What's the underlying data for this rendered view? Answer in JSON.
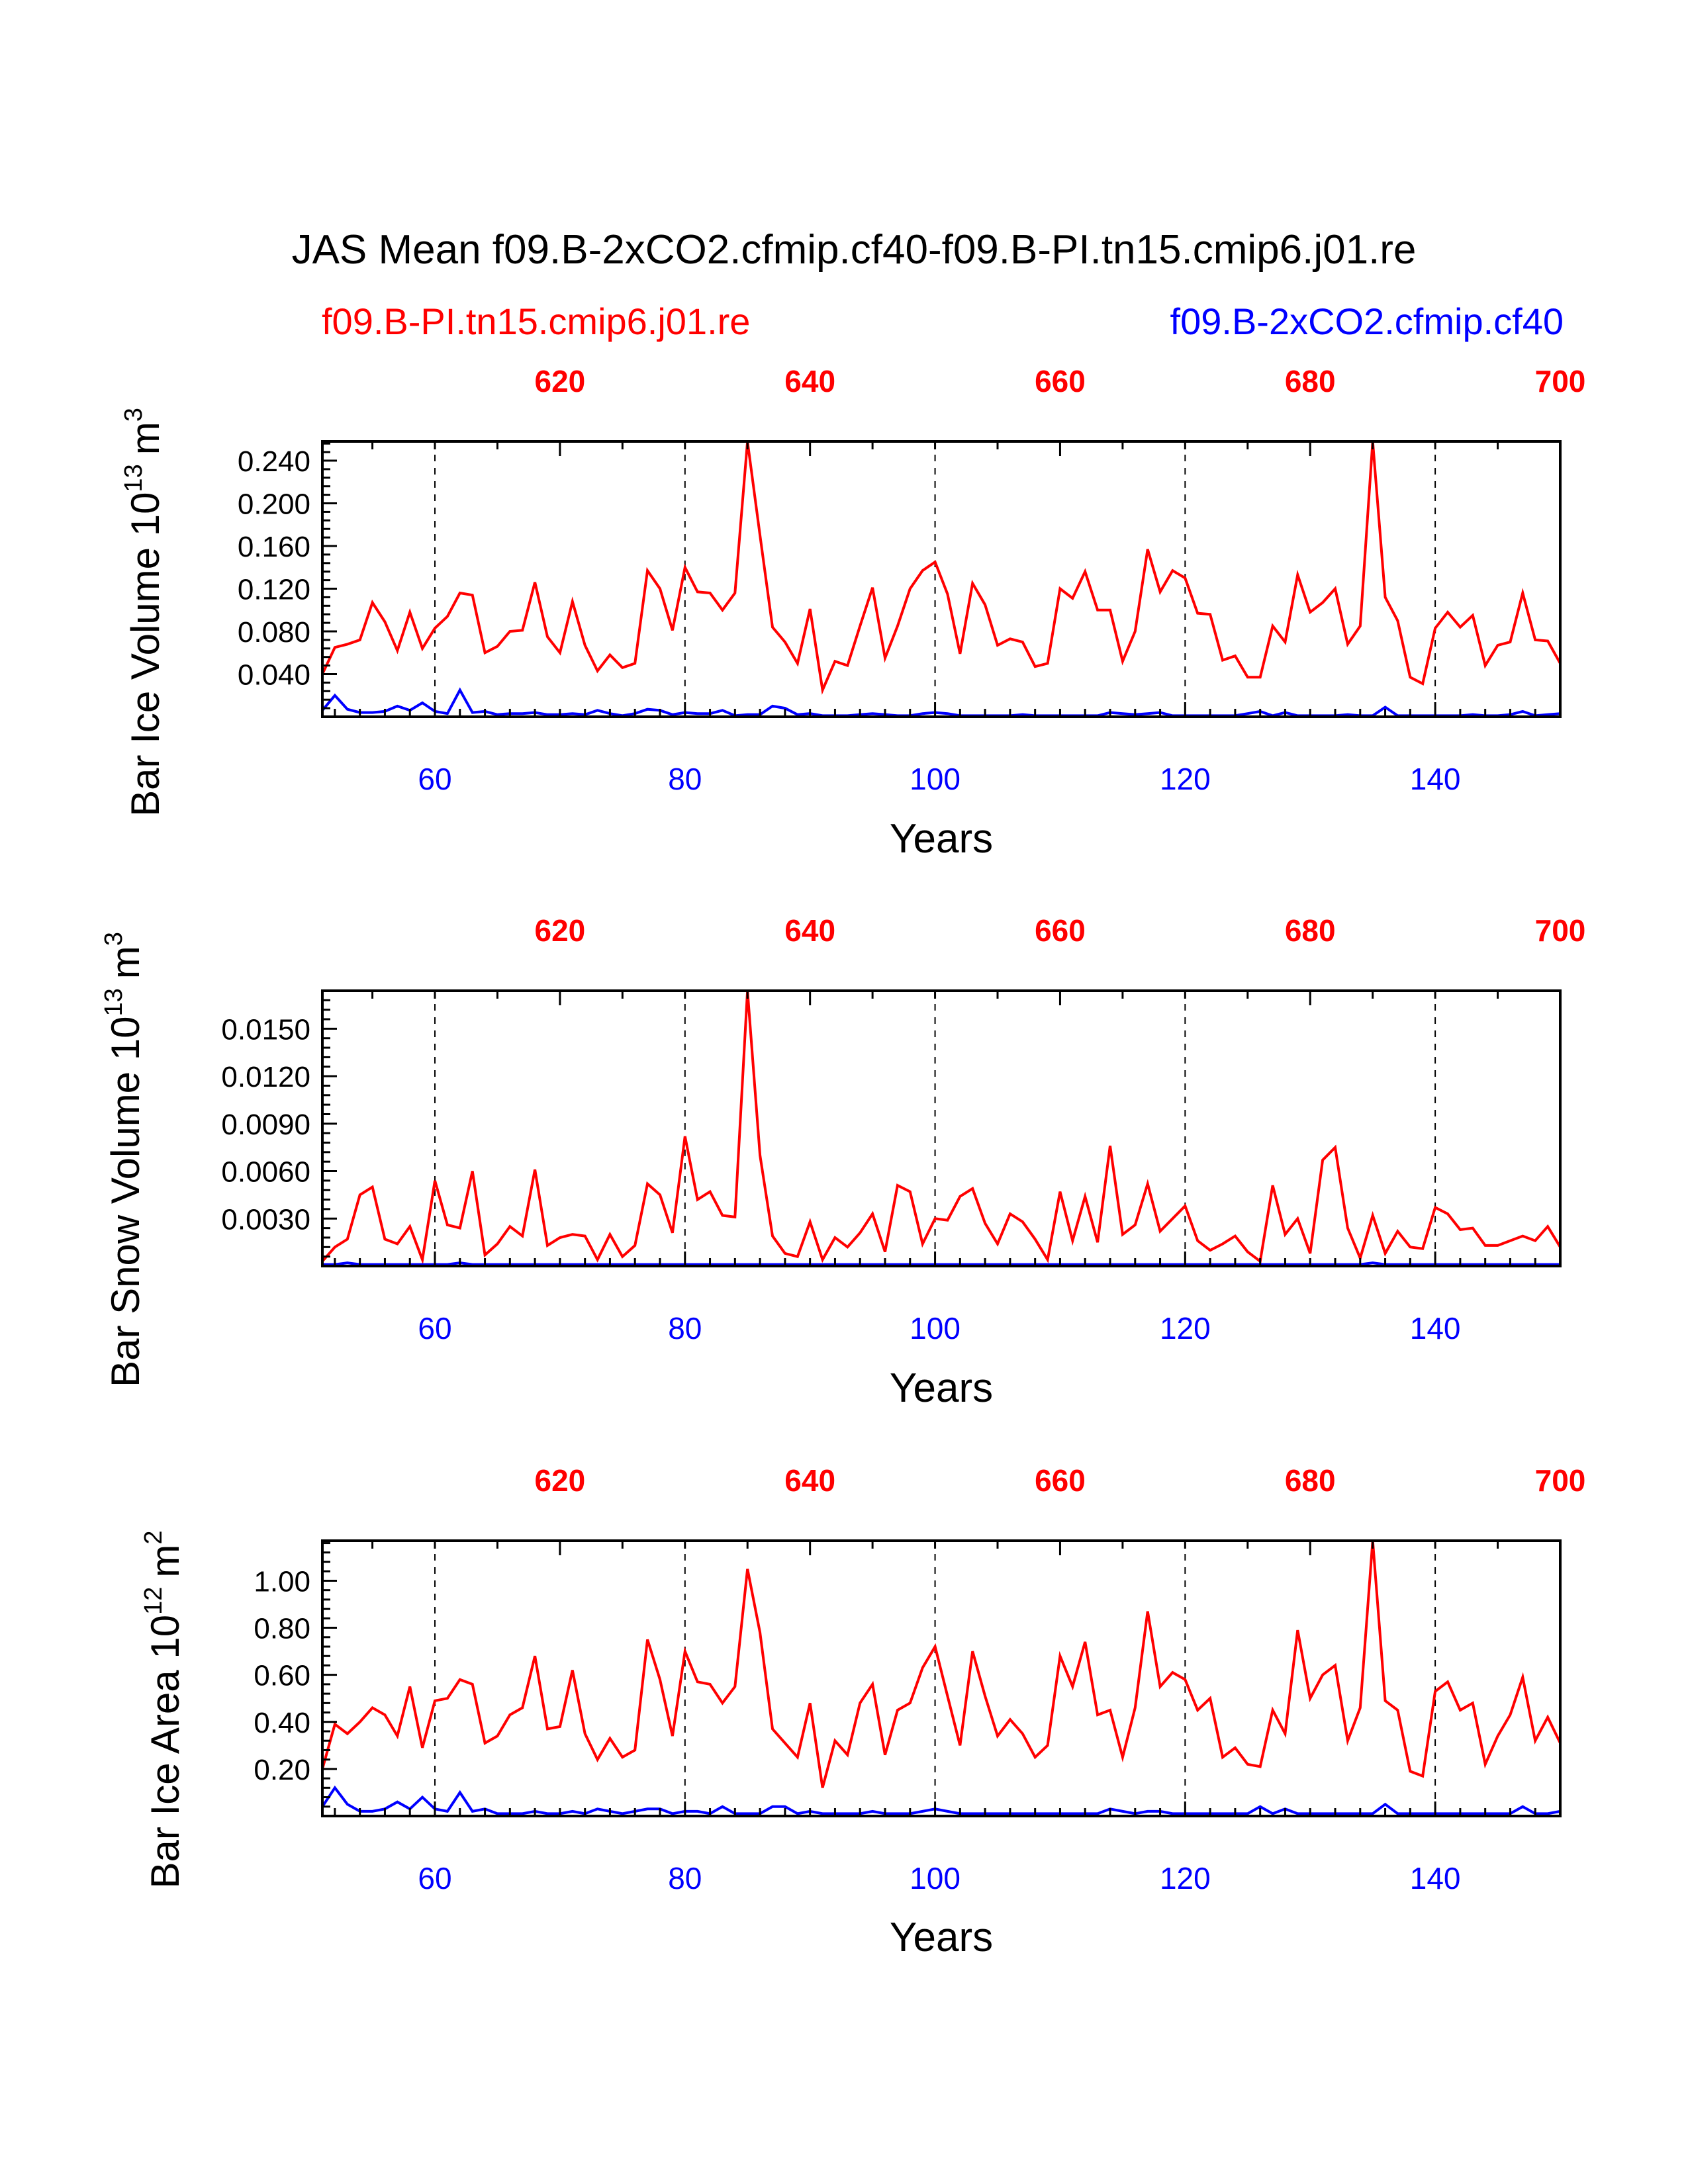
{
  "title": "JAS Mean f09.B-2xCO2.cfmip.cf40-f09.B-PI.tn15.cmip6.j01.re",
  "legend": {
    "left_label": "f09.B-PI.tn15.cmip6.j01.re",
    "right_label": "f09.B-2xCO2.cfmip.cf40",
    "left_color": "#ff0000",
    "right_color": "#0000ff"
  },
  "colors": {
    "control": "#ff0000",
    "experiment": "#0000ff",
    "axis": "#000000"
  },
  "chart_data": [
    {
      "type": "line",
      "ylabel_main": "Bar Ice Volume 10",
      "ylabel_exp": "13",
      "ylabel_unit": "m",
      "ylabel_unit_exp": "3",
      "xlabel": "Years",
      "xlim": [
        51,
        150
      ],
      "top_xlim": [
        601,
        700
      ],
      "ylim": [
        0.0,
        0.258
      ],
      "yticks": [
        0.04,
        0.08,
        0.12,
        0.16,
        0.2,
        0.24
      ],
      "ytick_labels": [
        "0.040",
        "0.080",
        "0.120",
        "0.160",
        "0.200",
        "0.240"
      ],
      "bottom_ticks": [
        60,
        80,
        100,
        120,
        140
      ],
      "bottom_tick_labels": [
        "60",
        "80",
        "100",
        "120",
        "140"
      ],
      "top_ticks": [
        620,
        640,
        660,
        680,
        700
      ],
      "top_tick_labels": [
        "620",
        "640",
        "660",
        "680",
        "700"
      ],
      "gridlines_x": [
        60,
        80,
        100,
        120,
        140
      ],
      "series": [
        {
          "name": "f09.B-PI.tn15.cmip6.j01.re",
          "color": "#ff0000",
          "x_start": 51,
          "values": [
            0.04,
            0.065,
            0.068,
            0.072,
            0.107,
            0.089,
            0.062,
            0.098,
            0.064,
            0.083,
            0.094,
            0.116,
            0.114,
            0.06,
            0.066,
            0.08,
            0.081,
            0.126,
            0.075,
            0.06,
            0.108,
            0.067,
            0.043,
            0.058,
            0.046,
            0.05,
            0.137,
            0.12,
            0.081,
            0.14,
            0.117,
            0.116,
            0.1,
            0.116,
            0.258,
            0.17,
            0.084,
            0.07,
            0.05,
            0.101,
            0.025,
            0.052,
            0.048,
            0.085,
            0.121,
            0.055,
            0.085,
            0.12,
            0.137,
            0.145,
            0.115,
            0.059,
            0.125,
            0.105,
            0.067,
            0.073,
            0.07,
            0.047,
            0.05,
            0.12,
            0.111,
            0.136,
            0.1,
            0.1,
            0.052,
            0.08,
            0.157,
            0.117,
            0.137,
            0.13,
            0.097,
            0.096,
            0.053,
            0.057,
            0.037,
            0.037,
            0.085,
            0.07,
            0.133,
            0.098,
            0.107,
            0.12,
            0.068,
            0.085,
            0.258,
            0.112,
            0.09,
            0.037,
            0.031,
            0.083,
            0.098,
            0.084,
            0.095,
            0.048,
            0.067,
            0.07,
            0.116,
            0.072,
            0.071,
            0.05
          ]
        },
        {
          "name": "f09.B-2xCO2.cfmip.cf40",
          "color": "#0000ff",
          "x_start": 51,
          "values": [
            0.006,
            0.02,
            0.007,
            0.004,
            0.004,
            0.005,
            0.01,
            0.006,
            0.013,
            0.005,
            0.003,
            0.025,
            0.004,
            0.005,
            0.002,
            0.003,
            0.003,
            0.004,
            0.002,
            0.002,
            0.003,
            0.002,
            0.006,
            0.003,
            0.001,
            0.003,
            0.007,
            0.006,
            0.002,
            0.004,
            0.003,
            0.003,
            0.006,
            0.001,
            0.002,
            0.002,
            0.01,
            0.008,
            0.002,
            0.003,
            0.001,
            0.001,
            0.001,
            0.002,
            0.003,
            0.002,
            0.001,
            0.001,
            0.003,
            0.004,
            0.003,
            0.001,
            0.001,
            0.001,
            0.001,
            0.001,
            0.002,
            0.001,
            0.001,
            0.001,
            0.001,
            0.001,
            0.001,
            0.004,
            0.003,
            0.002,
            0.003,
            0.004,
            0.001,
            0.001,
            0.001,
            0.001,
            0.001,
            0.001,
            0.003,
            0.005,
            0.001,
            0.004,
            0.001,
            0.001,
            0.001,
            0.001,
            0.002,
            0.001,
            0.001,
            0.009,
            0.001,
            0.001,
            0.001,
            0.001,
            0.001,
            0.001,
            0.002,
            0.001,
            0.001,
            0.002,
            0.005,
            0.001,
            0.002,
            0.003
          ]
        }
      ]
    },
    {
      "type": "line",
      "ylabel_main": "Bar Snow Volume 10",
      "ylabel_exp": "13",
      "ylabel_unit": "m",
      "ylabel_unit_exp": "3",
      "xlabel": "Years",
      "xlim": [
        51,
        150
      ],
      "top_xlim": [
        601,
        700
      ],
      "ylim": [
        0.0,
        0.0174
      ],
      "yticks": [
        0.003,
        0.006,
        0.009,
        0.012,
        0.015
      ],
      "ytick_labels": [
        "0.0030",
        "0.0060",
        "0.0090",
        "0.0120",
        "0.0150"
      ],
      "bottom_ticks": [
        60,
        80,
        100,
        120,
        140
      ],
      "bottom_tick_labels": [
        "60",
        "80",
        "100",
        "120",
        "140"
      ],
      "top_ticks": [
        620,
        640,
        660,
        680,
        700
      ],
      "top_tick_labels": [
        "620",
        "640",
        "660",
        "680",
        "700"
      ],
      "gridlines_x": [
        60,
        80,
        100,
        120,
        140
      ],
      "series": [
        {
          "name": "f09.B-PI.tn15.cmip6.j01.re",
          "color": "#ff0000",
          "x_start": 51,
          "values": [
            0.0003,
            0.0012,
            0.0017,
            0.0045,
            0.005,
            0.0017,
            0.0014,
            0.0025,
            0.0004,
            0.0054,
            0.0026,
            0.0024,
            0.006,
            0.0007,
            0.0014,
            0.0025,
            0.0019,
            0.0061,
            0.0013,
            0.0018,
            0.002,
            0.0019,
            0.0004,
            0.002,
            0.0006,
            0.0013,
            0.0052,
            0.0045,
            0.0021,
            0.0082,
            0.0042,
            0.0047,
            0.0032,
            0.0031,
            0.0174,
            0.007,
            0.0019,
            0.0008,
            0.0006,
            0.0028,
            0.0004,
            0.0018,
            0.0012,
            0.0021,
            0.0033,
            0.0009,
            0.0051,
            0.0047,
            0.0014,
            0.003,
            0.0029,
            0.0044,
            0.0049,
            0.0027,
            0.0014,
            0.0033,
            0.0028,
            0.0017,
            0.0004,
            0.0047,
            0.0016,
            0.0044,
            0.0015,
            0.0076,
            0.002,
            0.0026,
            0.0052,
            0.0022,
            0.003,
            0.0038,
            0.0016,
            0.001,
            0.0014,
            0.0019,
            0.0009,
            0.0003,
            0.0051,
            0.002,
            0.003,
            0.0008,
            0.0067,
            0.0075,
            0.0024,
            0.0005,
            0.0032,
            0.0008,
            0.0022,
            0.0012,
            0.0011,
            0.0037,
            0.0033,
            0.0023,
            0.0024,
            0.0013,
            0.0013,
            0.0016,
            0.0019,
            0.0016,
            0.0025,
            0.0012
          ]
        },
        {
          "name": "f09.B-2xCO2.cfmip.cf40",
          "color": "#0000ff",
          "x_start": 51,
          "values": [
            0.0001,
            0.0001,
            0.0002,
            0.0001,
            0.0001,
            0.0001,
            0.0001,
            0.0001,
            0.0001,
            0.0001,
            0.0001,
            0.0002,
            0.0001,
            0.0001,
            0.0001,
            0.0001,
            0.0001,
            0.0001,
            0.0001,
            0.0001,
            0.0001,
            0.0001,
            0.0001,
            0.0001,
            0.0001,
            0.0001,
            0.0001,
            0.0001,
            0.0001,
            0.0001,
            0.0001,
            0.0001,
            0.0001,
            0.0001,
            0.0001,
            0.0001,
            0.0001,
            0.0001,
            0.0001,
            0.0001,
            0.0001,
            0.0001,
            0.0001,
            0.0001,
            0.0001,
            0.0001,
            0.0001,
            0.0001,
            0.0001,
            0.0001,
            0.0001,
            0.0001,
            0.0001,
            0.0001,
            0.0001,
            0.0001,
            0.0001,
            0.0001,
            0.0001,
            0.0001,
            0.0001,
            0.0001,
            0.0001,
            0.0001,
            0.0001,
            0.0001,
            0.0001,
            0.0001,
            0.0001,
            0.0001,
            0.0001,
            0.0001,
            0.0001,
            0.0001,
            0.0001,
            0.0001,
            0.0001,
            0.0001,
            0.0001,
            0.0001,
            0.0001,
            0.0001,
            0.0001,
            0.0001,
            0.0002,
            0.0001,
            0.0001,
            0.0001,
            0.0001,
            0.0001,
            0.0001,
            0.0001,
            0.0001,
            0.0001,
            0.0001,
            0.0001,
            0.0001,
            0.0001,
            0.0001,
            0.0001
          ]
        }
      ]
    },
    {
      "type": "line",
      "ylabel_main": "Bar Ice Area 10",
      "ylabel_exp": "12",
      "ylabel_unit": "m",
      "ylabel_unit_exp": "2",
      "xlabel": "Years",
      "xlim": [
        51,
        150
      ],
      "top_xlim": [
        601,
        700
      ],
      "ylim": [
        0.0,
        1.17
      ],
      "yticks": [
        0.2,
        0.4,
        0.6,
        0.8,
        1.0
      ],
      "ytick_labels": [
        "0.20",
        "0.40",
        "0.60",
        "0.80",
        "1.00"
      ],
      "bottom_ticks": [
        60,
        80,
        100,
        120,
        140
      ],
      "bottom_tick_labels": [
        "60",
        "80",
        "100",
        "120",
        "140"
      ],
      "top_ticks": [
        620,
        640,
        660,
        680,
        700
      ],
      "top_tick_labels": [
        "620",
        "640",
        "660",
        "680",
        "700"
      ],
      "gridlines_x": [
        60,
        80,
        100,
        120,
        140
      ],
      "series": [
        {
          "name": "f09.B-PI.tn15.cmip6.j01.re",
          "color": "#ff0000",
          "x_start": 51,
          "values": [
            0.2,
            0.39,
            0.35,
            0.4,
            0.46,
            0.43,
            0.34,
            0.55,
            0.29,
            0.49,
            0.5,
            0.58,
            0.56,
            0.31,
            0.34,
            0.43,
            0.46,
            0.68,
            0.37,
            0.38,
            0.62,
            0.35,
            0.24,
            0.33,
            0.25,
            0.28,
            0.75,
            0.58,
            0.34,
            0.7,
            0.57,
            0.56,
            0.48,
            0.55,
            1.05,
            0.78,
            0.37,
            0.31,
            0.25,
            0.48,
            0.12,
            0.32,
            0.26,
            0.48,
            0.56,
            0.26,
            0.45,
            0.48,
            0.63,
            0.72,
            0.51,
            0.3,
            0.7,
            0.51,
            0.34,
            0.41,
            0.35,
            0.25,
            0.3,
            0.68,
            0.55,
            0.74,
            0.43,
            0.45,
            0.25,
            0.46,
            0.87,
            0.55,
            0.61,
            0.58,
            0.45,
            0.5,
            0.25,
            0.29,
            0.22,
            0.21,
            0.45,
            0.35,
            0.79,
            0.5,
            0.6,
            0.64,
            0.32,
            0.46,
            1.17,
            0.49,
            0.45,
            0.19,
            0.17,
            0.53,
            0.57,
            0.45,
            0.48,
            0.22,
            0.34,
            0.43,
            0.59,
            0.32,
            0.42,
            0.31
          ]
        },
        {
          "name": "f09.B-2xCO2.cfmip.cf40",
          "color": "#0000ff",
          "x_start": 51,
          "values": [
            0.04,
            0.12,
            0.05,
            0.02,
            0.02,
            0.03,
            0.06,
            0.03,
            0.08,
            0.03,
            0.02,
            0.1,
            0.02,
            0.03,
            0.01,
            0.01,
            0.01,
            0.02,
            0.01,
            0.01,
            0.02,
            0.01,
            0.03,
            0.02,
            0.01,
            0.02,
            0.03,
            0.03,
            0.01,
            0.02,
            0.02,
            0.01,
            0.04,
            0.01,
            0.01,
            0.01,
            0.04,
            0.04,
            0.01,
            0.02,
            0.01,
            0.01,
            0.01,
            0.01,
            0.02,
            0.01,
            0.01,
            0.01,
            0.02,
            0.03,
            0.02,
            0.01,
            0.01,
            0.01,
            0.01,
            0.01,
            0.01,
            0.01,
            0.01,
            0.01,
            0.01,
            0.01,
            0.01,
            0.03,
            0.02,
            0.01,
            0.02,
            0.02,
            0.01,
            0.01,
            0.01,
            0.01,
            0.01,
            0.01,
            0.01,
            0.04,
            0.01,
            0.03,
            0.01,
            0.01,
            0.01,
            0.01,
            0.01,
            0.01,
            0.01,
            0.05,
            0.01,
            0.01,
            0.01,
            0.01,
            0.01,
            0.01,
            0.01,
            0.01,
            0.01,
            0.01,
            0.04,
            0.01,
            0.01,
            0.02
          ]
        }
      ]
    }
  ]
}
